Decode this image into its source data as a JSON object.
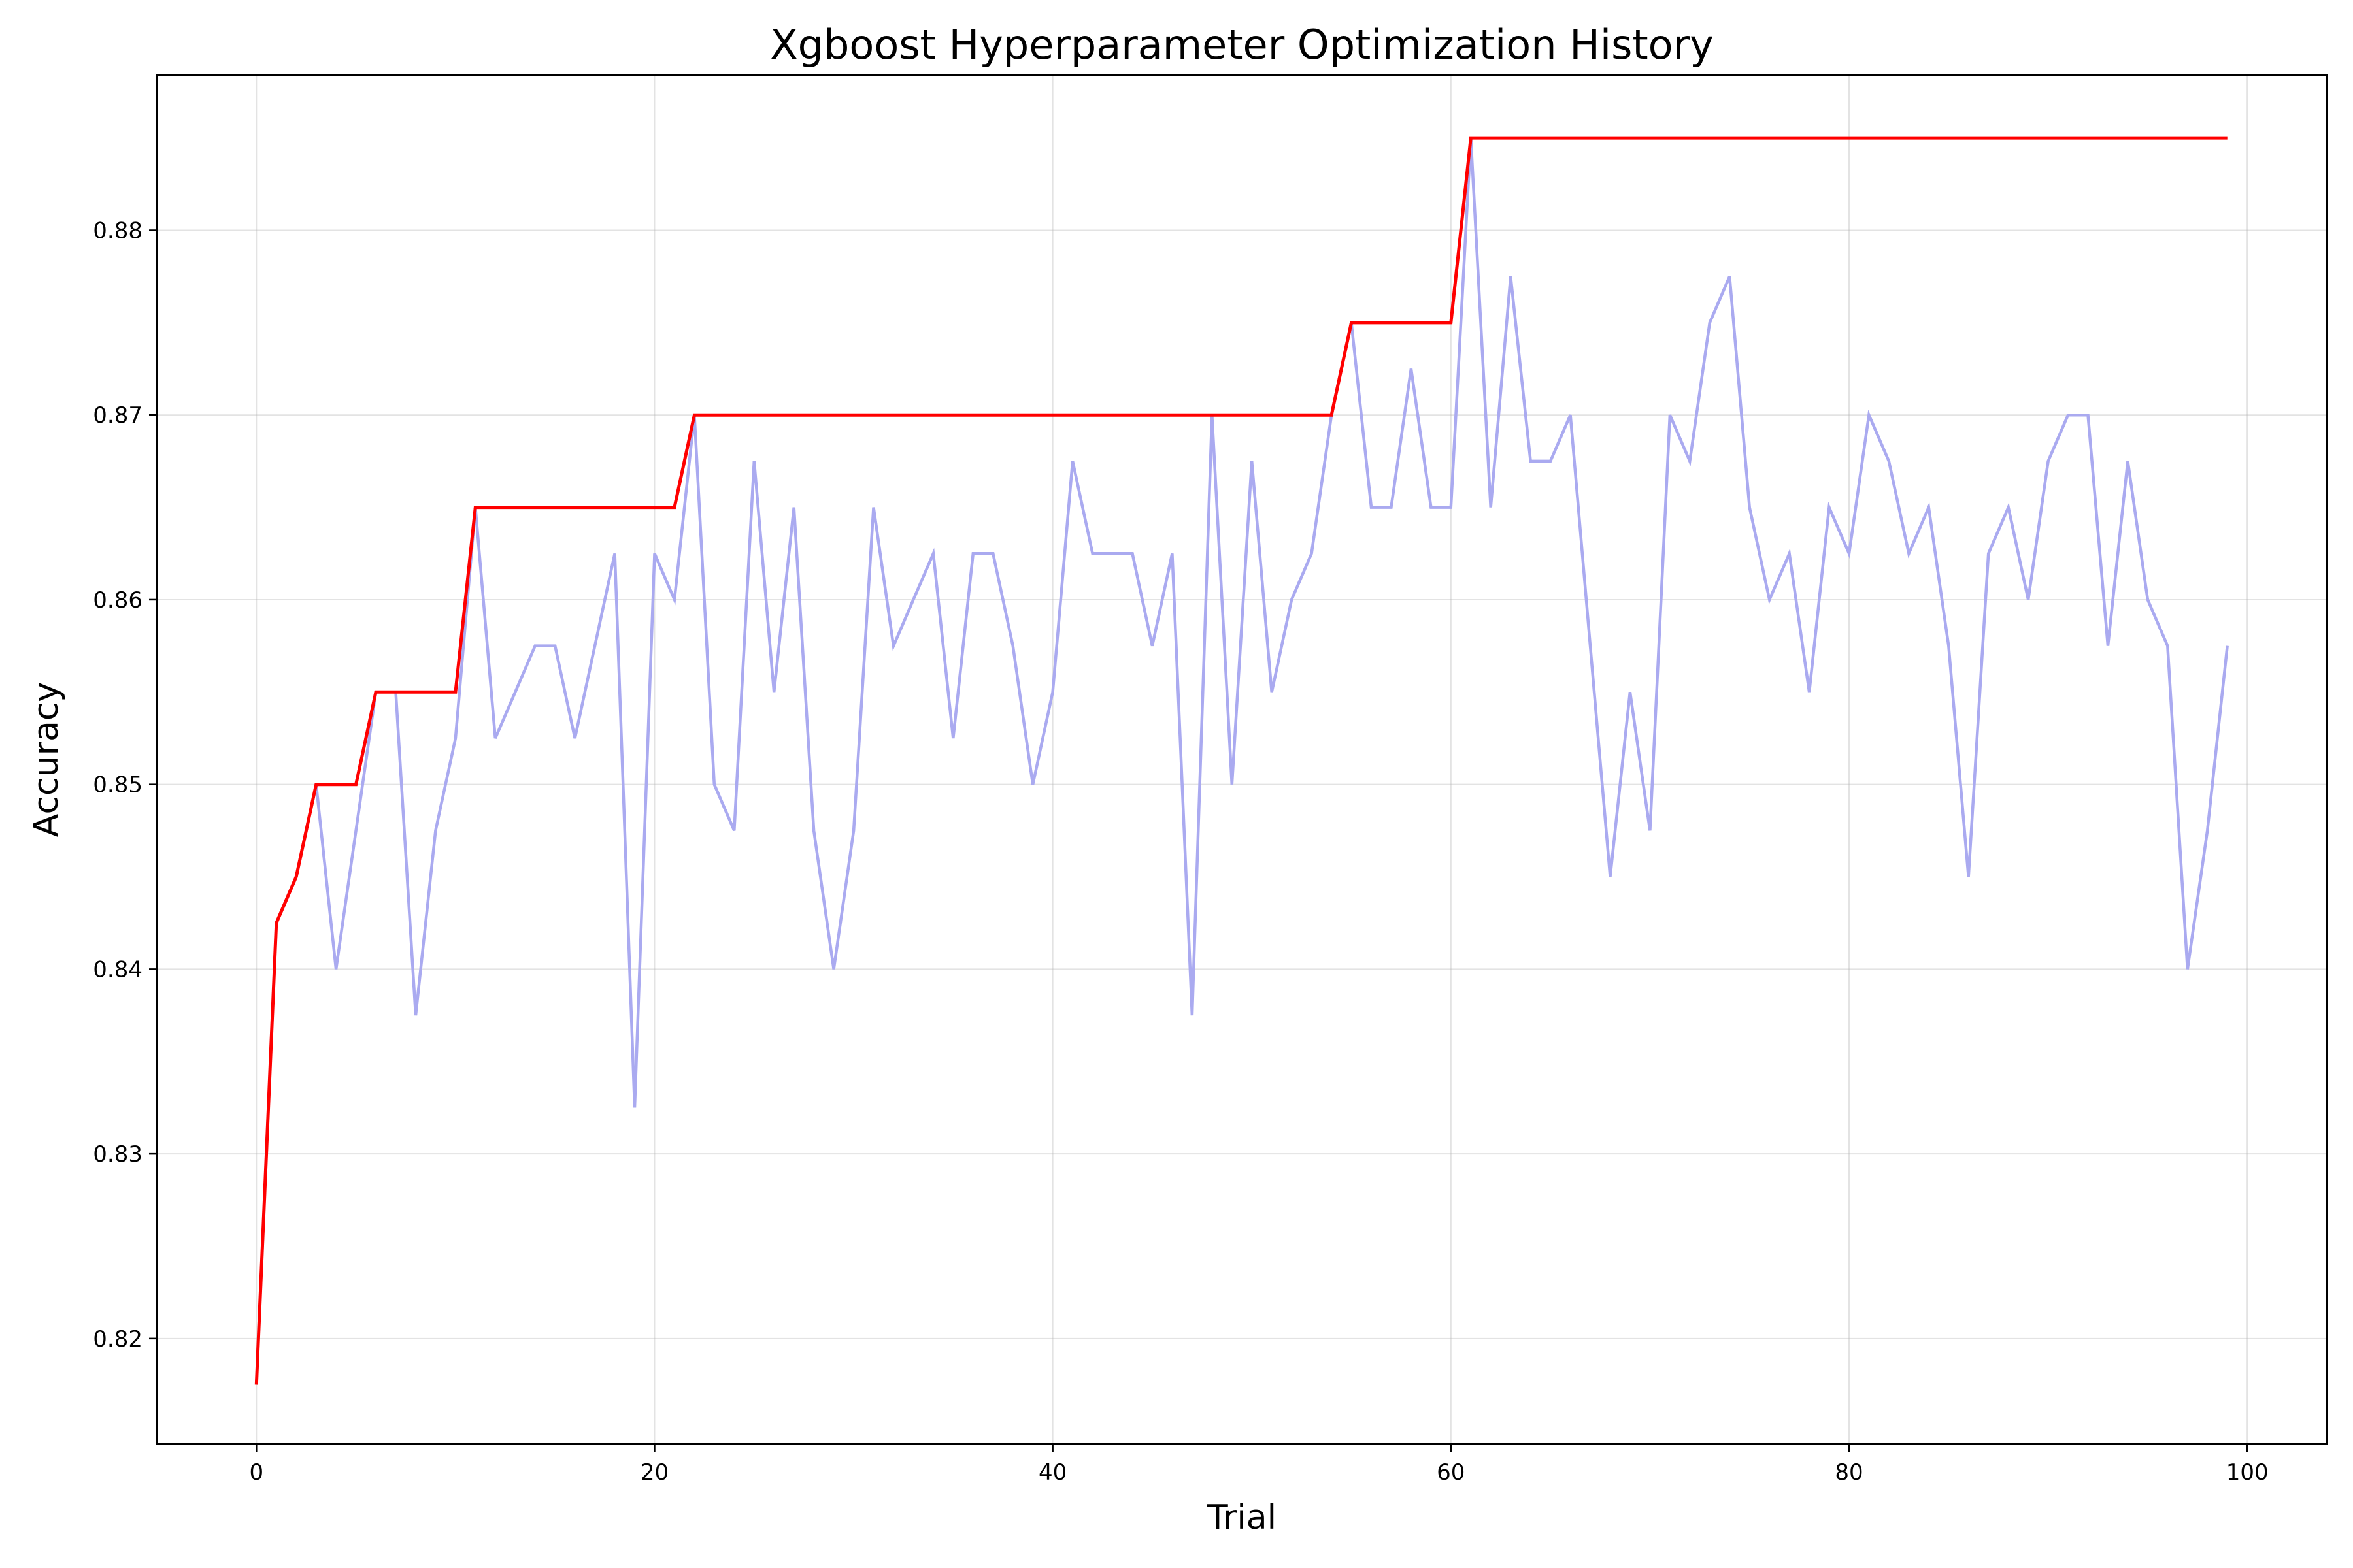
{
  "chart_data": {
    "type": "line",
    "title": "Xgboost Hyperparameter Optimization History",
    "xlabel": "Trial",
    "ylabel": "Accuracy",
    "xlim": [
      -5,
      104
    ],
    "ylim": [
      0.8143,
      0.8884
    ],
    "xticks": [
      0,
      20,
      40,
      60,
      80,
      100
    ],
    "yticks": [
      0.82,
      0.83,
      0.84,
      0.85,
      0.86,
      0.87,
      0.88
    ],
    "grid": true,
    "series": [
      {
        "color": "#aaaaf0",
        "x": [
          0,
          1,
          2,
          3,
          4,
          5,
          6,
          7,
          8,
          9,
          10,
          11,
          12,
          13,
          14,
          15,
          16,
          17,
          18,
          19,
          20,
          21,
          22,
          23,
          24,
          25,
          26,
          27,
          28,
          29,
          30,
          31,
          32,
          33,
          34,
          35,
          36,
          37,
          38,
          39,
          40,
          41,
          42,
          43,
          44,
          45,
          46,
          47,
          48,
          49,
          50,
          51,
          52,
          53,
          54,
          55,
          56,
          57,
          58,
          59,
          60,
          61,
          62,
          63,
          64,
          65,
          66,
          67,
          68,
          69,
          70,
          71,
          72,
          73,
          74,
          75,
          76,
          77,
          78,
          79,
          80,
          81,
          82,
          83,
          84,
          85,
          86,
          87,
          88,
          89,
          90,
          91,
          92,
          93,
          94,
          95,
          96,
          97,
          98,
          99
        ],
        "values": [
          0.8175,
          0.8425,
          0.845,
          0.85,
          0.84,
          0.8475,
          0.855,
          0.855,
          0.8375,
          0.8475,
          0.8525,
          0.865,
          0.8525,
          0.855,
          0.8575,
          0.8575,
          0.8525,
          0.8575,
          0.8625,
          0.8325,
          0.8625,
          0.86,
          0.87,
          0.85,
          0.8475,
          0.8675,
          0.855,
          0.865,
          0.8475,
          0.84,
          0.8475,
          0.865,
          0.8575,
          0.86,
          0.8625,
          0.8525,
          0.8625,
          0.8625,
          0.8575,
          0.85,
          0.855,
          0.8675,
          0.8625,
          0.8625,
          0.8625,
          0.8575,
          0.8625,
          0.8375,
          0.87,
          0.85,
          0.8675,
          0.855,
          0.86,
          0.8625,
          0.87,
          0.875,
          0.865,
          0.865,
          0.8725,
          0.865,
          0.865,
          0.885,
          0.865,
          0.8775,
          0.8675,
          0.8675,
          0.87,
          0.8575,
          0.845,
          0.855,
          0.8475,
          0.87,
          0.8675,
          0.875,
          0.8775,
          0.865,
          0.86,
          0.8625,
          0.855,
          0.865,
          0.8625,
          0.87,
          0.8675,
          0.8625,
          0.865,
          0.8575,
          0.845,
          0.8625,
          0.865,
          0.86,
          0.8675,
          0.87,
          0.87,
          0.8575,
          0.8675,
          0.86,
          0.8575,
          0.84,
          0.8475,
          0.8575
        ]
      },
      {
        "color": "#ff0000",
        "x": [
          0,
          1,
          2,
          3,
          4,
          5,
          6,
          7,
          8,
          9,
          10,
          11,
          12,
          13,
          14,
          15,
          16,
          17,
          18,
          19,
          20,
          21,
          22,
          23,
          24,
          25,
          26,
          27,
          28,
          29,
          30,
          31,
          32,
          33,
          34,
          35,
          36,
          37,
          38,
          39,
          40,
          41,
          42,
          43,
          44,
          45,
          46,
          47,
          48,
          49,
          50,
          51,
          52,
          53,
          54,
          55,
          56,
          57,
          58,
          59,
          60,
          61,
          62,
          63,
          64,
          65,
          66,
          67,
          68,
          69,
          70,
          71,
          72,
          73,
          74,
          75,
          76,
          77,
          78,
          79,
          80,
          81,
          82,
          83,
          84,
          85,
          86,
          87,
          88,
          89,
          90,
          91,
          92,
          93,
          94,
          95,
          96,
          97,
          98,
          99
        ],
        "values": [
          0.8175,
          0.8425,
          0.845,
          0.85,
          0.85,
          0.85,
          0.855,
          0.855,
          0.855,
          0.855,
          0.855,
          0.865,
          0.865,
          0.865,
          0.865,
          0.865,
          0.865,
          0.865,
          0.865,
          0.865,
          0.865,
          0.865,
          0.87,
          0.87,
          0.87,
          0.87,
          0.87,
          0.87,
          0.87,
          0.87,
          0.87,
          0.87,
          0.87,
          0.87,
          0.87,
          0.87,
          0.87,
          0.87,
          0.87,
          0.87,
          0.87,
          0.87,
          0.87,
          0.87,
          0.87,
          0.87,
          0.87,
          0.87,
          0.87,
          0.87,
          0.87,
          0.87,
          0.87,
          0.87,
          0.87,
          0.875,
          0.875,
          0.875,
          0.875,
          0.875,
          0.875,
          0.885,
          0.885,
          0.885,
          0.885,
          0.885,
          0.885,
          0.885,
          0.885,
          0.885,
          0.885,
          0.885,
          0.885,
          0.885,
          0.885,
          0.885,
          0.885,
          0.885,
          0.885,
          0.885,
          0.885,
          0.885,
          0.885,
          0.885,
          0.885,
          0.885,
          0.885,
          0.885,
          0.885,
          0.885,
          0.885,
          0.885,
          0.885,
          0.885,
          0.885,
          0.885,
          0.885,
          0.885,
          0.885,
          0.885
        ]
      }
    ]
  }
}
